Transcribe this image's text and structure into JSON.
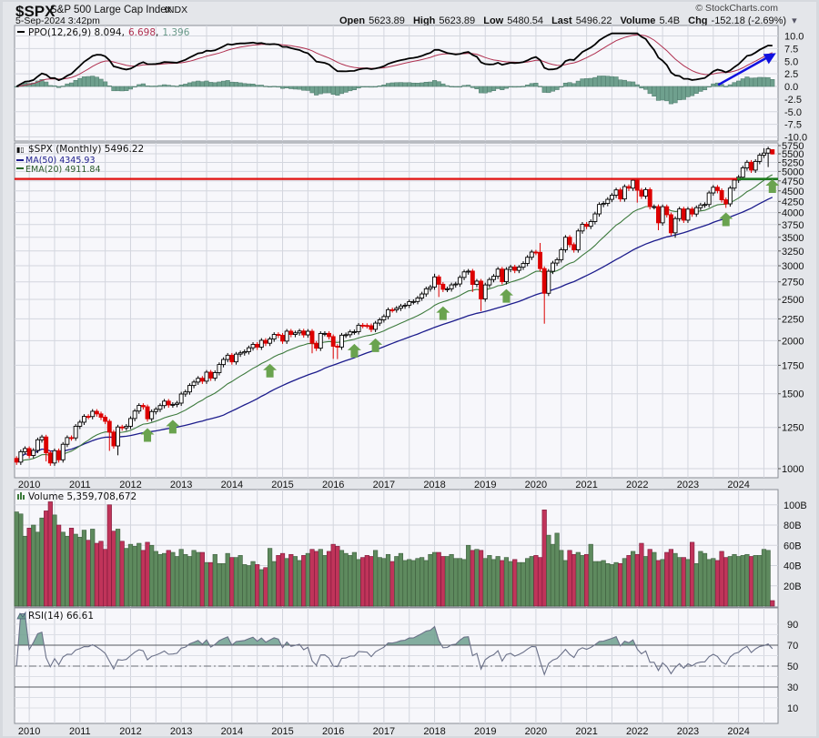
{
  "header": {
    "symbol": "$SPX",
    "name": "S&P 500 Large Cap Index",
    "exchange": "INDX",
    "datetime": "5-Sep-2024 3:42pm",
    "copyright": "© StockCharts.com",
    "open_label": "Open",
    "open": "5623.89",
    "high_label": "High",
    "high": "5623.89",
    "low_label": "Low",
    "low": "5480.54",
    "last_label": "Last",
    "last": "5496.22",
    "volume_label": "Volume",
    "volume": "5.4B",
    "chg_label": "Chg",
    "chg": "-152.18 (-2.69%)",
    "dropdown_glyph": "▾"
  },
  "legends": {
    "ppo": {
      "label": "PPO(12,26,9) 8.094",
      "sep1": ",",
      "signal": "6.698",
      "sep2": ",",
      "hist": "1.396"
    },
    "price": {
      "label": "$SPX (Monthly) 5496.22"
    },
    "ma": {
      "label": "MA(50) 4345.93"
    },
    "ema": {
      "label": "EMA(20) 4911.84"
    },
    "volume": {
      "label": "Volume 5,359,708,672"
    },
    "rsi": {
      "label": "RSI(14) 66.61"
    }
  },
  "colors": {
    "up_candle": "#000000",
    "down_candle": "#dd0000",
    "ma50": "#1c1c8c",
    "ema20": "#3d7a3d",
    "ppo_line": "#000000",
    "ppo_signal": "#b03050",
    "ppo_hist": "#6fa08e",
    "vol_up": "#5e8a5e",
    "vol_down": "#c0345a",
    "resistance_line": "#e01010",
    "support_line": "#1e7a1e",
    "arrow_green": "#6aa34f",
    "arrow_blue": "#1010e0",
    "rsi_line": "#6a7088",
    "rsi_fill": "#6fa08e"
  },
  "x_axis": {
    "year_labels": [
      "2010",
      "2011",
      "2012",
      "2013",
      "2014",
      "2015",
      "2016",
      "2017",
      "2018",
      "2019",
      "2020",
      "2021",
      "2022",
      "2023",
      "2024"
    ]
  },
  "chart_data": {
    "type": "candlestick",
    "title": "$SPX S&P 500 Large Cap Index (Monthly)",
    "start_month": "2009-10",
    "end_month": "2024-09",
    "first_open": 1057,
    "closes": [
      1036,
      1096,
      1115,
      1074,
      1104,
      1169,
      1187,
      1089,
      1031,
      1102,
      1049,
      1141,
      1183,
      1181,
      1258,
      1286,
      1327,
      1326,
      1364,
      1345,
      1321,
      1292,
      1219,
      1131,
      1253,
      1247,
      1258,
      1312,
      1366,
      1408,
      1398,
      1310,
      1362,
      1379,
      1407,
      1441,
      1412,
      1416,
      1426,
      1498,
      1515,
      1569,
      1598,
      1631,
      1606,
      1686,
      1633,
      1682,
      1757,
      1806,
      1848,
      1783,
      1859,
      1872,
      1884,
      1924,
      1960,
      1931,
      2003,
      1972,
      2018,
      2068,
      2059,
      1995,
      2105,
      2068,
      2086,
      2107,
      2063,
      2104,
      1972,
      1920,
      2079,
      2080,
      2044,
      1940,
      1932,
      2060,
      2065,
      2097,
      2099,
      2174,
      2171,
      2168,
      2126,
      2199,
      2239,
      2279,
      2364,
      2363,
      2384,
      2412,
      2423,
      2470,
      2472,
      2519,
      2575,
      2648,
      2674,
      2824,
      2714,
      2641,
      2648,
      2705,
      2718,
      2816,
      2902,
      2914,
      2712,
      2760,
      2507,
      2704,
      2784,
      2834,
      2946,
      2752,
      2942,
      2980,
      2926,
      2977,
      3038,
      3141,
      3231,
      3226,
      2954,
      2585,
      2912,
      3044,
      3100,
      3271,
      3500,
      3363,
      3270,
      3622,
      3756,
      3714,
      3811,
      3973,
      4181,
      4204,
      4298,
      4395,
      4523,
      4308,
      4605,
      4567,
      4766,
      4516,
      4374,
      4530,
      4132,
      4132,
      3785,
      4130,
      3955,
      3586,
      3872,
      4080,
      3840,
      4077,
      3970,
      4109,
      4169,
      4180,
      4450,
      4589,
      4508,
      4288,
      4194,
      4568,
      4770,
      4846,
      5096,
      5254,
      5036,
      5278,
      5460,
      5522,
      5648,
      5496.22
    ],
    "last_bar": {
      "open": 5623.89,
      "high": 5623.89,
      "low": 5480.54,
      "close": 5496.22
    },
    "extremes": {
      "2010-05": {
        "low": 1040
      },
      "2011-08": {
        "low": 1101
      },
      "2011-10": {
        "low": 1075
      },
      "2015-08": {
        "low": 1867
      },
      "2016-01": {
        "low": 1812
      },
      "2016-02": {
        "low": 1810
      },
      "2018-01": {
        "high": 2873
      },
      "2018-02": {
        "low": 2533
      },
      "2018-10": {
        "low": 2603
      },
      "2018-12": {
        "low": 2347
      },
      "2020-02": {
        "high": 3394
      },
      "2020-03": {
        "low": 2192
      },
      "2022-01": {
        "high": 4818,
        "low": 4223
      },
      "2022-06": {
        "low": 3637
      },
      "2022-10": {
        "low": 3492
      },
      "2023-10": {
        "low": 4104
      },
      "2024-07": {
        "high": 5669
      },
      "2024-08": {
        "low": 5119
      }
    },
    "volume_billions": [
      93,
      91,
      69,
      77,
      80,
      73,
      87,
      94,
      103,
      90,
      80,
      73,
      69,
      77,
      71,
      68,
      75,
      65,
      76,
      62,
      64,
      56,
      100,
      74,
      76,
      64,
      57,
      61,
      59,
      62,
      55,
      63,
      60,
      54,
      51,
      52,
      55,
      53,
      49,
      56,
      51,
      49,
      55,
      53,
      53,
      43,
      43,
      51,
      42,
      42,
      52,
      48,
      48,
      50,
      41,
      40,
      44,
      41,
      36,
      38,
      57,
      44,
      50,
      52,
      47,
      51,
      49,
      45,
      50,
      52,
      56,
      54,
      56,
      50,
      54,
      61,
      59,
      55,
      52,
      50,
      53,
      46,
      48,
      50,
      49,
      55,
      48,
      47,
      51,
      44,
      49,
      52,
      45,
      46,
      45,
      47,
      48,
      45,
      51,
      53,
      53,
      49,
      49,
      51,
      47,
      47,
      46,
      60,
      55,
      56,
      55,
      47,
      50,
      46,
      49,
      45,
      48,
      44,
      46,
      43,
      43,
      47,
      49,
      50,
      48,
      95,
      70,
      61,
      72,
      55,
      45,
      55,
      51,
      53,
      50,
      51,
      61,
      44,
      44,
      45,
      42,
      41,
      43,
      42,
      47,
      50,
      54,
      51,
      62,
      49,
      56,
      53,
      45,
      46,
      53,
      56,
      52,
      48,
      48,
      46,
      63,
      42,
      54,
      52,
      46,
      47,
      45,
      54,
      48,
      49,
      51,
      49,
      50,
      51,
      49,
      50,
      50,
      56,
      55,
      5.4
    ],
    "indicators": {
      "ma_period": 50,
      "ema_period": 20,
      "ppo": [
        12,
        26,
        9
      ],
      "rsi_period": 14
    },
    "price_axis": {
      "scale": "log",
      "ticks": [
        1000,
        1250,
        1500,
        1750,
        2000,
        2250,
        2500,
        2750,
        3000,
        3250,
        3500,
        3750,
        4000,
        4250,
        4500,
        4750,
        5000,
        5250,
        5500,
        5750
      ]
    },
    "ppo_axis": {
      "ticks": [
        "10.0",
        "7.5",
        "5.0",
        "2.5",
        "0.0",
        "-2.5",
        "-5.0",
        "-7.5",
        "-10.0"
      ],
      "range": [
        -10,
        10
      ]
    },
    "volume_axis": {
      "ticks": [
        "100B",
        "80B",
        "60B",
        "40B",
        "20B"
      ],
      "values": [
        100,
        80,
        60,
        40,
        20
      ]
    },
    "rsi_axis": {
      "ticks": [
        "90",
        "70",
        "50",
        "30",
        "10"
      ],
      "values": [
        90,
        70,
        50,
        30,
        10
      ],
      "overbought": 70,
      "oversold": 30
    },
    "annotations": {
      "resistance_level": 4800,
      "support_level": 4800,
      "green_up_arrows_months": [
        "2012-05",
        "2012-11",
        "2014-10",
        "2016-06",
        "2016-11",
        "2018-03",
        "2019-06",
        "2023-10",
        "2024-09"
      ],
      "blue_arrow_ppo": {
        "from_month": "2023-06",
        "from_value": 0.3,
        "to_month": "2024-09",
        "to_value": 6.6
      }
    }
  }
}
